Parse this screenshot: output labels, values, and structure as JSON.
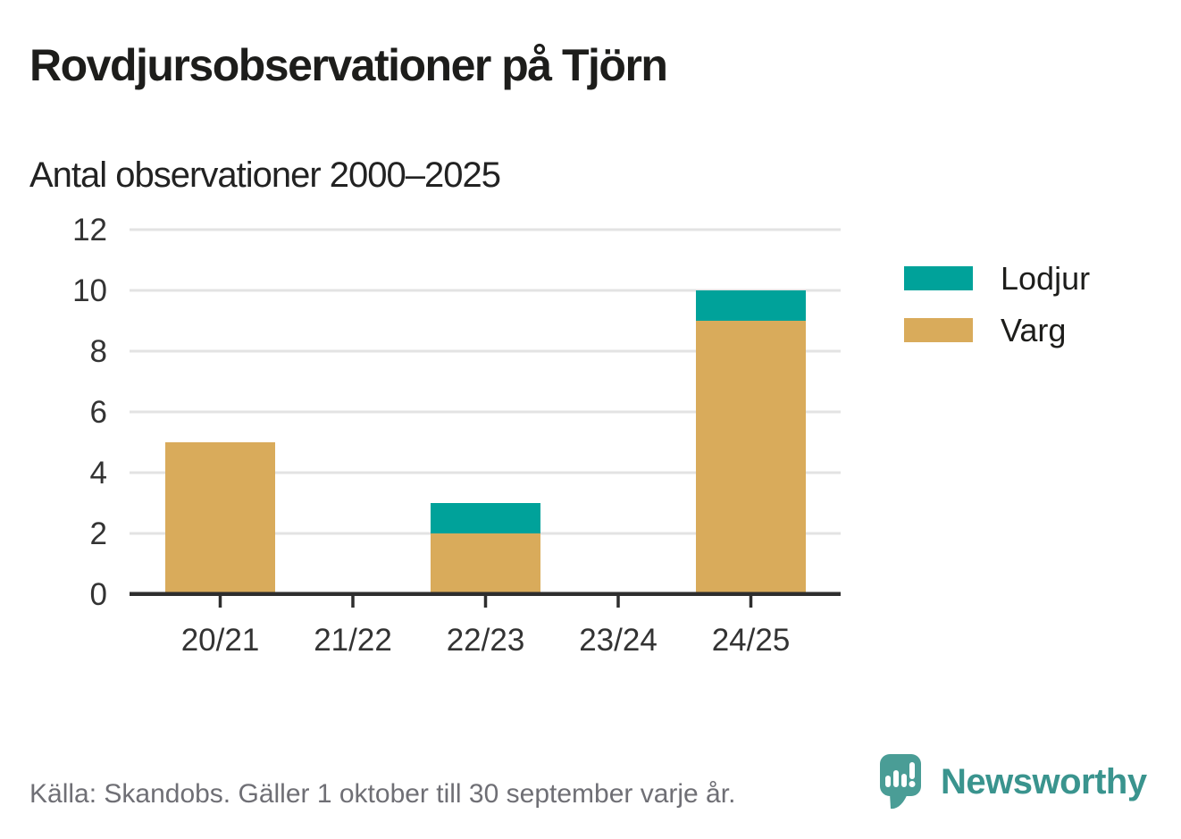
{
  "header": {
    "title": "Rovdjursobservationer på Tjörn",
    "subtitle": "Antal observationer 2000–2025"
  },
  "chart_data": {
    "type": "bar",
    "stacked": true,
    "title": "Rovdjursobservationer på Tjörn",
    "subtitle": "Antal observationer 2000–2025",
    "categories": [
      "20/21",
      "21/22",
      "22/23",
      "23/24",
      "24/25"
    ],
    "series": [
      {
        "name": "Lodjur",
        "color": "#00a29a",
        "values": [
          0,
          0,
          1,
          0,
          1
        ]
      },
      {
        "name": "Varg",
        "color": "#d9ab5b",
        "values": [
          5,
          0,
          2,
          0,
          9
        ]
      }
    ],
    "totals": [
      5,
      0,
      3,
      0,
      10
    ],
    "xlabel": "",
    "ylabel": "",
    "ylim": [
      0,
      12
    ],
    "yticks": [
      0,
      2,
      4,
      6,
      8,
      10,
      12
    ],
    "grid": true,
    "legend_position": "right"
  },
  "footer": {
    "source": "Källa: Skandobs. Gäller 1 oktober till 30 september varje år.",
    "brand": "Newsworthy"
  },
  "colors": {
    "lodjur_teal": "#00a29a",
    "varg_tan": "#d9ab5b",
    "brand_teal": "#3a948e",
    "logo_teal": "#4a9d96",
    "axis": "#2e2e2e",
    "grid": "#e3e3e3",
    "tick_text": "#333333",
    "muted_text": "#6f6f75"
  }
}
